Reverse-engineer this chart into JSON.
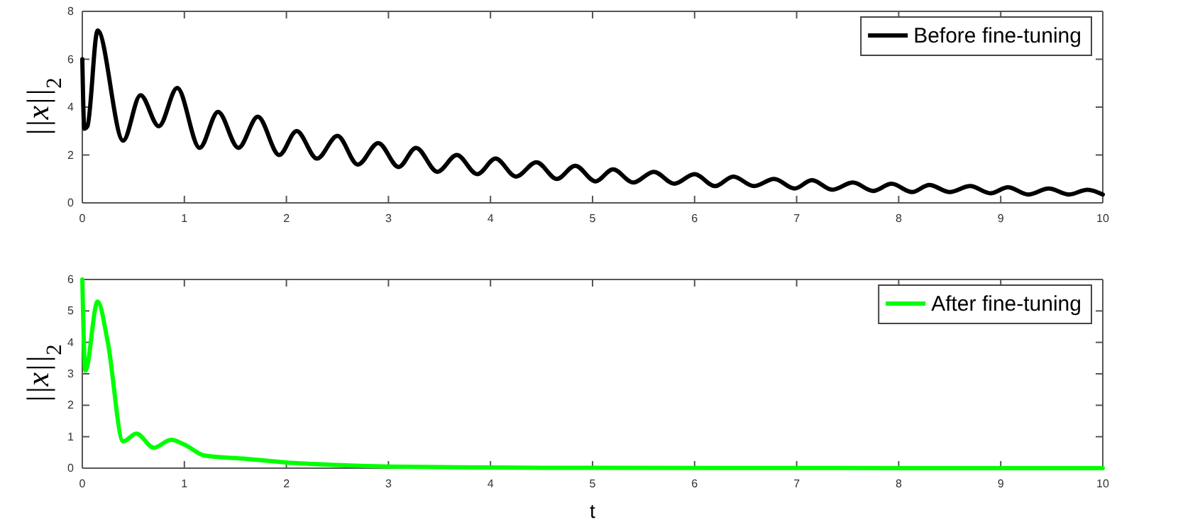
{
  "chart_data": [
    {
      "type": "line",
      "ylabel": "||x||$_{2}$",
      "xlim": [
        0,
        10
      ],
      "xticks": [
        0,
        1,
        2,
        3,
        4,
        5,
        6,
        7,
        8,
        9,
        10
      ],
      "ylim": [
        0,
        8
      ],
      "yticks": [
        0,
        2,
        4,
        6,
        8
      ],
      "grid": false,
      "legend": "top right",
      "line_style": "solid",
      "marker": "none",
      "x": [
        0,
        0.02,
        0.05,
        0.15,
        0.4,
        0.57,
        0.75,
        0.93,
        1.15,
        1.33,
        1.53,
        1.72,
        1.93,
        2.1,
        2.3,
        2.5,
        2.7,
        2.9,
        3.1,
        3.27,
        3.48,
        3.67,
        3.87,
        4.05,
        4.25,
        4.45,
        4.65,
        4.83,
        5.03,
        5.2,
        5.4,
        5.6,
        5.8,
        6.0,
        6.2,
        6.38,
        6.58,
        6.78,
        6.98,
        7.15,
        7.35,
        7.55,
        7.75,
        7.93,
        8.13,
        8.3,
        8.5,
        8.7,
        8.9,
        9.07,
        9.27,
        9.47,
        9.67,
        9.85,
        10
      ],
      "series": [
        {
          "name": "Before fine-tuning",
          "color": "#000000",
          "values": [
            6.0,
            3.1,
            3.2,
            7.2,
            2.6,
            4.5,
            3.2,
            4.8,
            2.3,
            3.8,
            2.3,
            3.6,
            2.0,
            3.0,
            1.85,
            2.8,
            1.6,
            2.5,
            1.5,
            2.3,
            1.3,
            2.0,
            1.2,
            1.85,
            1.1,
            1.7,
            1.0,
            1.55,
            0.9,
            1.4,
            0.85,
            1.3,
            0.8,
            1.2,
            0.7,
            1.1,
            0.7,
            1.0,
            0.6,
            0.95,
            0.55,
            0.85,
            0.5,
            0.8,
            0.45,
            0.75,
            0.45,
            0.7,
            0.4,
            0.65,
            0.35,
            0.6,
            0.35,
            0.55,
            0.35
          ]
        }
      ]
    },
    {
      "type": "line",
      "xlabel": "t",
      "ylabel": "||x||$_{2}$",
      "xlim": [
        0,
        10
      ],
      "xticks": [
        0,
        1,
        2,
        3,
        4,
        5,
        6,
        7,
        8,
        9,
        10
      ],
      "ylim": [
        0,
        6
      ],
      "yticks": [
        0,
        1,
        2,
        3,
        4,
        5,
        6
      ],
      "grid": false,
      "legend": "top right",
      "line_style": "solid",
      "marker": "none",
      "x": [
        0,
        0.03,
        0.15,
        0.25,
        0.4,
        0.53,
        0.7,
        0.87,
        1.0,
        1.2,
        1.6,
        2.0,
        2.5,
        3,
        4,
        5,
        10
      ],
      "series": [
        {
          "name": "After fine-tuning",
          "color": "#00ff00",
          "values": [
            6.0,
            3.1,
            5.3,
            4.0,
            0.85,
            1.1,
            0.65,
            0.9,
            0.75,
            0.4,
            0.3,
            0.18,
            0.1,
            0.05,
            0.02,
            0.01,
            0
          ]
        }
      ]
    }
  ]
}
